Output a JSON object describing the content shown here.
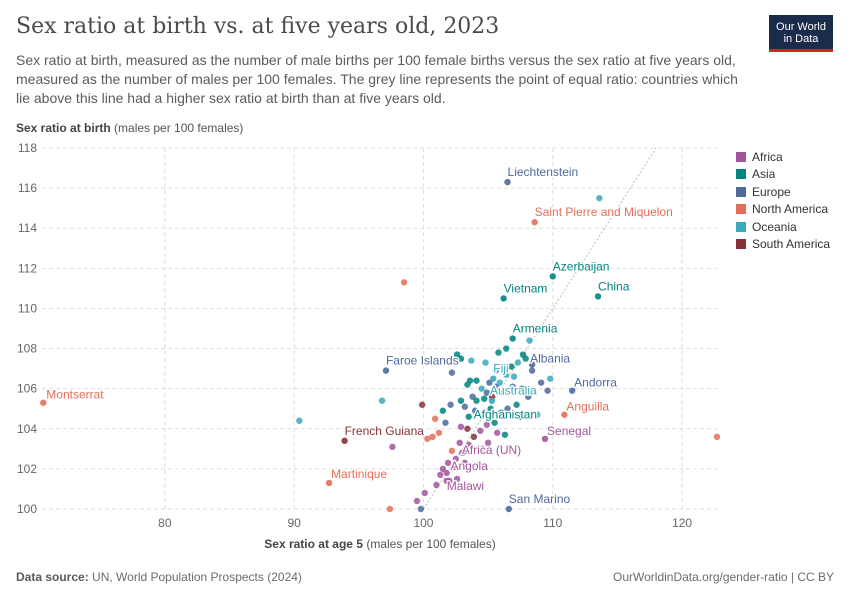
{
  "header": {
    "title": "Sex ratio at birth vs. at five years old, 2023",
    "subtitle": "Sex ratio at birth, measured as the number of male births per 100 female births versus the sex ratio at five years old, measured as the number of males per 100 females. The grey line represents the point of equal ratio: countries which lie above this line had a higher sex ratio at birth than at five years old.",
    "logo_line1": "Our World",
    "logo_line2": "in Data"
  },
  "axes": {
    "y_label_bold": "Sex ratio at birth",
    "y_label_unit": " (males per 100 females)",
    "x_label_bold": "Sex ratio at age 5",
    "x_label_unit": " (males per 100 females)"
  },
  "footer": {
    "source_label": "Data source:",
    "source_text": " UN, World Population Prospects (2024)",
    "url": "OurWorldinData.org/gender-ratio | CC BY"
  },
  "colors": {
    "Africa": "#a2559c",
    "Asia": "#00847e",
    "Europe": "#4c6a9c",
    "North America": "#e56e5a",
    "Oceania": "#38aaba",
    "South America": "#883039",
    "grid": "#dddddd",
    "axis_text": "#666666"
  },
  "legend": [
    "Africa",
    "Asia",
    "Europe",
    "North America",
    "Oceania",
    "South America"
  ],
  "chart_data": {
    "type": "scatter",
    "xlim": [
      70.5,
      122.7
    ],
    "ylim": [
      100,
      118
    ],
    "x_ticks": [
      80,
      90,
      100,
      110,
      120
    ],
    "y_ticks": [
      100,
      102,
      104,
      106,
      108,
      110,
      112,
      114,
      116,
      118
    ],
    "grid": true,
    "legend_position": "right",
    "equal_ratio_line": true,
    "labeled_points": [
      {
        "label": "Liechtenstein",
        "x": 106.5,
        "y": 116.3,
        "region": "Europe"
      },
      {
        "label": "Saint Pierre and Miquelon",
        "x": 108.6,
        "y": 114.3,
        "region": "North America"
      },
      {
        "label": "Azerbaijan",
        "x": 110.0,
        "y": 111.6,
        "region": "Asia"
      },
      {
        "label": "Vietnam",
        "x": 106.2,
        "y": 110.5,
        "region": "Asia"
      },
      {
        "label": "China",
        "x": 113.5,
        "y": 110.6,
        "region": "Asia"
      },
      {
        "label": "Armenia",
        "x": 106.9,
        "y": 108.5,
        "region": "Asia"
      },
      {
        "label": "Albania",
        "x": 108.4,
        "y": 107.2,
        "region": "Europe"
      },
      {
        "label": "Faroe Islands",
        "x": 97.1,
        "y": 106.9,
        "region": "Europe"
      },
      {
        "label": "Fiji",
        "x": 105.4,
        "y": 106.5,
        "region": "Oceania"
      },
      {
        "label": "Montserrat",
        "x": 70.6,
        "y": 105.3,
        "region": "North America"
      },
      {
        "label": "Andorra",
        "x": 111.5,
        "y": 105.9,
        "region": "Europe"
      },
      {
        "label": "Australia",
        "x": 105.3,
        "y": 105.4,
        "region": "Oceania"
      },
      {
        "label": "Anguilla",
        "x": 110.9,
        "y": 104.7,
        "region": "North America"
      },
      {
        "label": "Afghanistan",
        "x": 104.5,
        "y": 104.7,
        "region": "Asia"
      },
      {
        "label": "French Guiana",
        "x": 93.9,
        "y": 103.4,
        "region": "South America"
      },
      {
        "label": "Senegal",
        "x": 109.4,
        "y": 103.5,
        "region": "Africa"
      },
      {
        "label": "Africa (UN)",
        "x": 103.2,
        "y": 102.9,
        "region": "Africa"
      },
      {
        "label": "Angola",
        "x": 102.4,
        "y": 102.1,
        "region": "Africa"
      },
      {
        "label": "Martinique",
        "x": 92.7,
        "y": 101.3,
        "region": "North America"
      },
      {
        "label": "Malawi",
        "x": 101.8,
        "y": 101.4,
        "region": "Africa"
      },
      {
        "label": "San Marino",
        "x": 106.6,
        "y": 100.0,
        "region": "Europe"
      }
    ],
    "points": [
      {
        "x": 98.5,
        "y": 111.3,
        "region": "North America"
      },
      {
        "x": 113.6,
        "y": 115.5,
        "region": "Oceania"
      },
      {
        "x": 122.7,
        "y": 103.6,
        "region": "North America"
      },
      {
        "x": 90.4,
        "y": 104.4,
        "region": "Oceania"
      },
      {
        "x": 96.8,
        "y": 105.4,
        "region": "Oceania"
      },
      {
        "x": 97.4,
        "y": 100.0,
        "region": "North America"
      },
      {
        "x": 97.6,
        "y": 103.1,
        "region": "Africa"
      },
      {
        "x": 99.9,
        "y": 105.2,
        "region": "South America"
      },
      {
        "x": 99.8,
        "y": 100.0,
        "region": "Europe"
      },
      {
        "x": 99.5,
        "y": 100.4,
        "region": "Africa"
      },
      {
        "x": 100.1,
        "y": 100.8,
        "region": "Africa"
      },
      {
        "x": 100.9,
        "y": 104.5,
        "region": "North America"
      },
      {
        "x": 100.3,
        "y": 103.5,
        "region": "North America"
      },
      {
        "x": 101.5,
        "y": 104.9,
        "region": "Asia"
      },
      {
        "x": 102.2,
        "y": 106.8,
        "region": "Europe"
      },
      {
        "x": 102.6,
        "y": 107.7,
        "region": "Asia"
      },
      {
        "x": 102.9,
        "y": 107.5,
        "region": "Asia"
      },
      {
        "x": 103.4,
        "y": 106.2,
        "region": "Asia"
      },
      {
        "x": 103.6,
        "y": 106.4,
        "region": "Asia"
      },
      {
        "x": 102.9,
        "y": 105.4,
        "region": "Asia"
      },
      {
        "x": 103.2,
        "y": 105.1,
        "region": "Europe"
      },
      {
        "x": 103.8,
        "y": 105.6,
        "region": "Europe"
      },
      {
        "x": 103.5,
        "y": 104.6,
        "region": "Asia"
      },
      {
        "x": 104.1,
        "y": 105.4,
        "region": "Asia"
      },
      {
        "x": 104.5,
        "y": 106.0,
        "region": "Oceania"
      },
      {
        "x": 104.9,
        "y": 105.8,
        "region": "Europe"
      },
      {
        "x": 105.3,
        "y": 105.6,
        "region": "South America"
      },
      {
        "x": 105.6,
        "y": 106.1,
        "region": "Europe"
      },
      {
        "x": 105.9,
        "y": 106.3,
        "region": "Oceania"
      },
      {
        "x": 106.4,
        "y": 106.7,
        "region": "Oceania"
      },
      {
        "x": 106.8,
        "y": 107.1,
        "region": "Asia"
      },
      {
        "x": 107.3,
        "y": 107.3,
        "region": "Oceania"
      },
      {
        "x": 107.9,
        "y": 107.5,
        "region": "Asia"
      },
      {
        "x": 108.2,
        "y": 108.4,
        "region": "Oceania"
      },
      {
        "x": 108.4,
        "y": 106.9,
        "region": "Europe"
      },
      {
        "x": 108.1,
        "y": 105.6,
        "region": "Europe"
      },
      {
        "x": 107.2,
        "y": 105.2,
        "region": "Asia"
      },
      {
        "x": 106.5,
        "y": 105.0,
        "region": "Europe"
      },
      {
        "x": 106.0,
        "y": 104.8,
        "region": "Asia"
      },
      {
        "x": 105.5,
        "y": 104.3,
        "region": "Asia"
      },
      {
        "x": 104.9,
        "y": 104.2,
        "region": "Africa"
      },
      {
        "x": 104.4,
        "y": 103.9,
        "region": "Africa"
      },
      {
        "x": 103.9,
        "y": 103.6,
        "region": "South America"
      },
      {
        "x": 103.5,
        "y": 103.2,
        "region": "Africa"
      },
      {
        "x": 103.0,
        "y": 102.8,
        "region": "Africa"
      },
      {
        "x": 102.5,
        "y": 102.5,
        "region": "Africa"
      },
      {
        "x": 102.2,
        "y": 102.9,
        "region": "North America"
      },
      {
        "x": 101.9,
        "y": 102.3,
        "region": "Africa"
      },
      {
        "x": 101.5,
        "y": 102.0,
        "region": "Africa"
      },
      {
        "x": 101.3,
        "y": 101.7,
        "region": "Africa"
      },
      {
        "x": 101.0,
        "y": 101.2,
        "region": "Africa"
      },
      {
        "x": 101.8,
        "y": 101.8,
        "region": "Africa"
      },
      {
        "x": 102.6,
        "y": 101.5,
        "region": "Africa"
      },
      {
        "x": 104.3,
        "y": 102.2,
        "region": "Africa"
      },
      {
        "x": 105.0,
        "y": 103.3,
        "region": "Africa"
      },
      {
        "x": 105.7,
        "y": 103.8,
        "region": "Africa"
      },
      {
        "x": 106.3,
        "y": 103.7,
        "region": "Asia"
      },
      {
        "x": 107.5,
        "y": 104.6,
        "region": "Asia"
      },
      {
        "x": 108.8,
        "y": 104.7,
        "region": "Oceania"
      },
      {
        "x": 109.8,
        "y": 106.5,
        "region": "Oceania"
      },
      {
        "x": 109.6,
        "y": 105.9,
        "region": "Europe"
      },
      {
        "x": 109.1,
        "y": 106.3,
        "region": "Europe"
      },
      {
        "x": 107.6,
        "y": 106.0,
        "region": "Asia"
      },
      {
        "x": 107.0,
        "y": 106.6,
        "region": "Oceania"
      },
      {
        "x": 106.2,
        "y": 105.8,
        "region": "Asia"
      },
      {
        "x": 105.2,
        "y": 105.0,
        "region": "Asia"
      },
      {
        "x": 104.7,
        "y": 105.5,
        "region": "Asia"
      },
      {
        "x": 104.1,
        "y": 106.4,
        "region": "Asia"
      },
      {
        "x": 103.7,
        "y": 107.4,
        "region": "Oceania"
      },
      {
        "x": 105.8,
        "y": 107.8,
        "region": "Asia"
      },
      {
        "x": 106.4,
        "y": 108.0,
        "region": "Asia"
      },
      {
        "x": 107.7,
        "y": 107.7,
        "region": "Asia"
      },
      {
        "x": 104.8,
        "y": 107.3,
        "region": "Oceania"
      },
      {
        "x": 102.1,
        "y": 105.2,
        "region": "Europe"
      },
      {
        "x": 101.7,
        "y": 104.3,
        "region": "Europe"
      },
      {
        "x": 101.2,
        "y": 103.8,
        "region": "North America"
      },
      {
        "x": 102.9,
        "y": 104.1,
        "region": "Africa"
      },
      {
        "x": 103.4,
        "y": 104.0,
        "region": "South America"
      },
      {
        "x": 104.0,
        "y": 104.9,
        "region": "Europe"
      },
      {
        "x": 103.2,
        "y": 102.3,
        "region": "Africa"
      },
      {
        "x": 102.8,
        "y": 103.3,
        "region": "Africa"
      },
      {
        "x": 104.6,
        "y": 103.0,
        "region": "Africa"
      },
      {
        "x": 102.0,
        "y": 101.4,
        "region": "Africa"
      },
      {
        "x": 100.7,
        "y": 103.6,
        "region": "North America"
      },
      {
        "x": 105.6,
        "y": 106.9,
        "region": "Oceania"
      },
      {
        "x": 106.9,
        "y": 106.1,
        "region": "Europe"
      },
      {
        "x": 105.1,
        "y": 106.3,
        "region": "Europe"
      }
    ]
  }
}
